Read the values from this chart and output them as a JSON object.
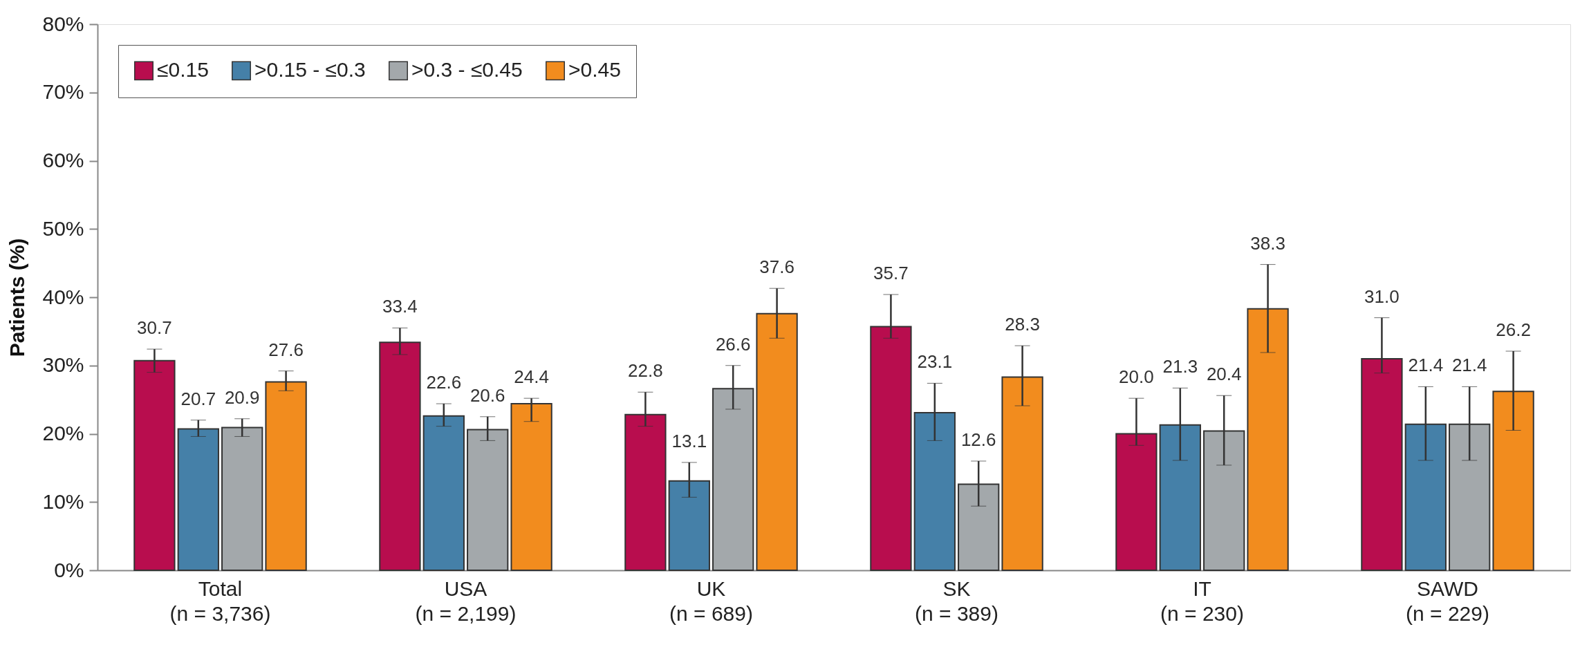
{
  "chart_data": {
    "type": "bar",
    "ylabel": "Patients (%)",
    "categories": [
      "Total\n(n = 3,736)",
      "USA\n(n = 2,199)",
      "UK\n(n = 689)",
      "SK\n(n = 389)",
      "IT\n(n = 230)",
      "SAWD\n(n = 229)"
    ],
    "series": [
      {
        "name": "≤0.15",
        "color": "#b80d4e",
        "values": [
          30.7,
          33.4,
          22.8,
          35.7,
          20.0,
          31.0
        ],
        "value_labels": [
          "30.7",
          "33.4",
          "22.8",
          "35.7",
          "20.0",
          "31.0"
        ],
        "errors": [
          [
            29.0,
            32.4
          ],
          [
            31.6,
            35.5
          ],
          [
            21.1,
            26.1
          ],
          [
            34.0,
            40.4
          ],
          [
            18.3,
            25.2
          ],
          [
            28.9,
            37.0
          ]
        ]
      },
      {
        "name": ">0.15 - ≤0.3",
        "color": "#4580a8",
        "values": [
          20.7,
          22.6,
          13.1,
          23.1,
          21.3,
          21.4
        ],
        "errors": [
          [
            19.6,
            22.0
          ],
          [
            21.1,
            24.4
          ],
          [
            10.7,
            15.8
          ],
          [
            19.0,
            27.4
          ],
          [
            16.1,
            26.7
          ],
          [
            16.1,
            26.9
          ]
        ]
      },
      {
        "name": ">0.3 - ≤0.45",
        "color": "#a3a8ab",
        "values": [
          20.9,
          20.6,
          26.6,
          12.6,
          20.4,
          21.4
        ],
        "errors": [
          [
            19.6,
            22.2
          ],
          [
            19.0,
            22.5
          ],
          [
            23.6,
            30.0
          ],
          [
            9.4,
            16.0
          ],
          [
            15.4,
            25.6
          ],
          [
            16.1,
            26.9
          ]
        ]
      },
      {
        "name": ">0.45",
        "color": "#f28c1e",
        "values": [
          27.6,
          24.4,
          37.6,
          28.3,
          38.3,
          26.2
        ],
        "errors": [
          [
            26.3,
            29.2
          ],
          [
            21.8,
            25.2
          ],
          [
            34.0,
            41.3
          ],
          [
            24.1,
            32.9
          ],
          [
            31.9,
            44.8
          ],
          [
            20.5,
            32.1
          ]
        ]
      }
    ],
    "ylim": [
      0,
      80
    ],
    "yticks": [
      {
        "value": 0,
        "label": "0%"
      },
      {
        "value": 10,
        "label": "10%"
      },
      {
        "value": 20,
        "label": "20%"
      },
      {
        "value": 30,
        "label": "30%"
      },
      {
        "value": 40,
        "label": "40%"
      },
      {
        "value": 50,
        "label": "50%"
      },
      {
        "value": 60,
        "label": "60%"
      },
      {
        "value": 70,
        "label": "70%"
      },
      {
        "value": 80,
        "label": "80%"
      }
    ],
    "data_labels": true,
    "legend": "top left",
    "grid": false
  }
}
